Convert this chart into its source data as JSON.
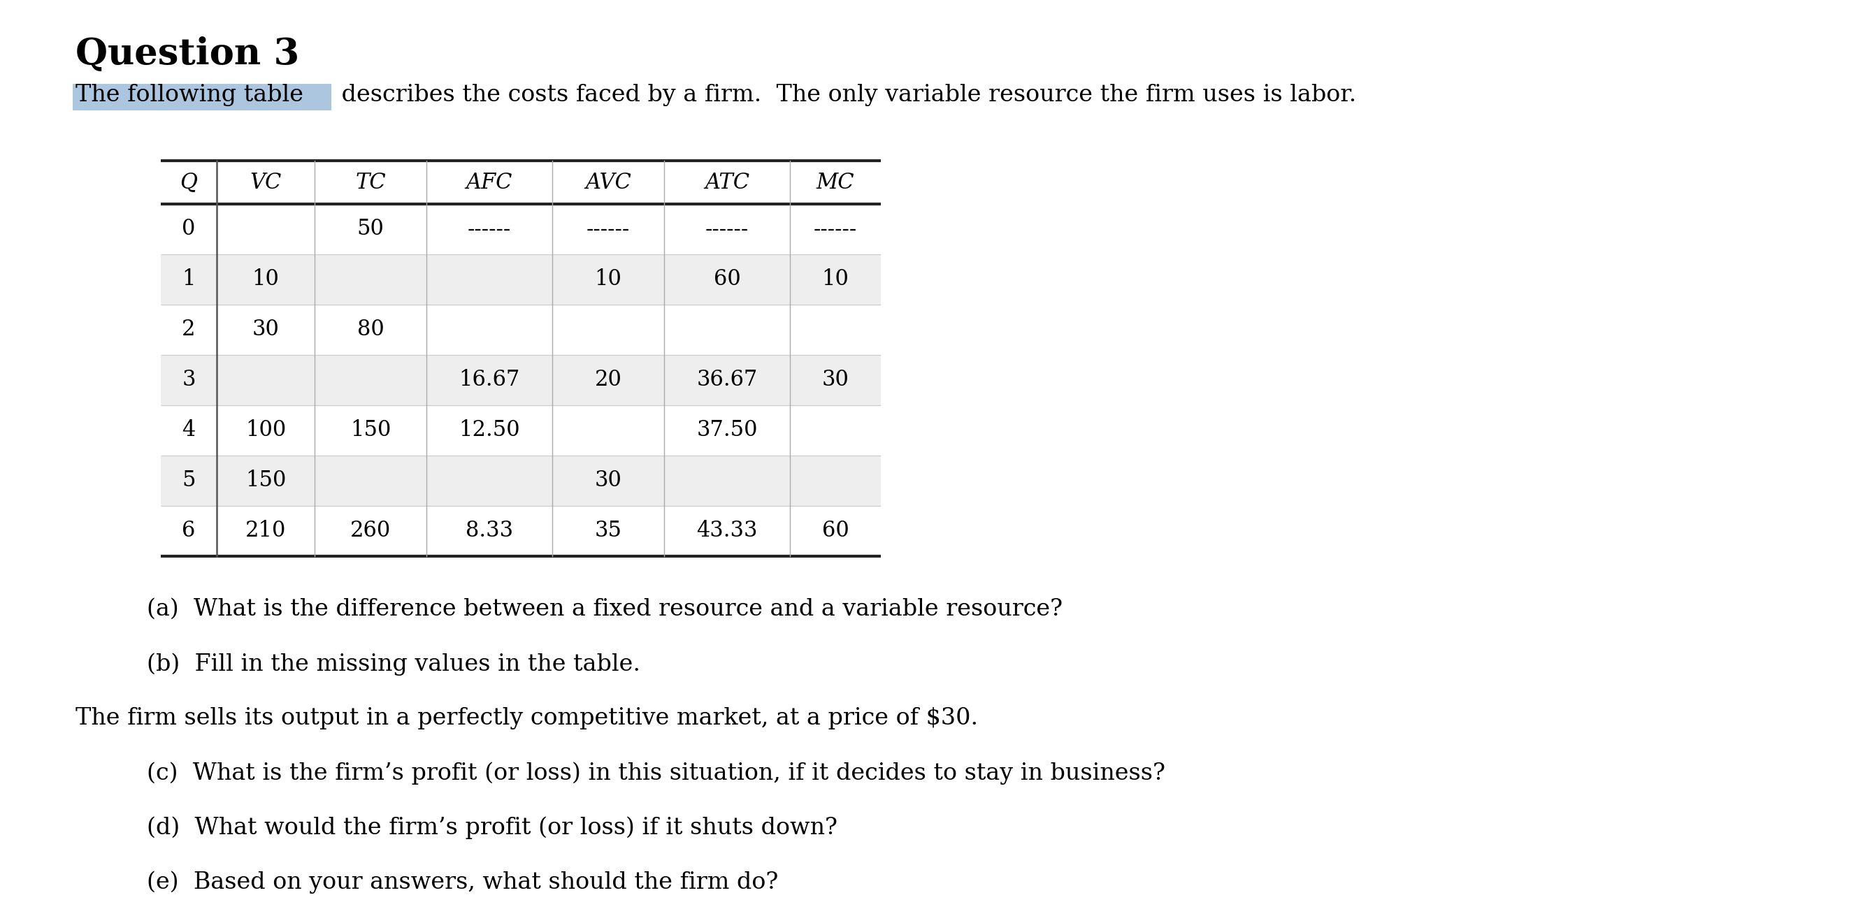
{
  "title": "Question 3",
  "intro_text_highlight": "The following table",
  "intro_text_rest": " describes the costs faced by a firm.  The only variable resource the firm uses is labor.",
  "highlight_color": "#adc6e0",
  "table_headers": [
    "Q",
    "VC",
    "TC",
    "AFC",
    "AVC",
    "ATC",
    "MC"
  ],
  "table_data": [
    [
      "0",
      "",
      "50",
      "------",
      "------",
      "------",
      "------"
    ],
    [
      "1",
      "10",
      "",
      "",
      "10",
      "60",
      "10"
    ],
    [
      "2",
      "30",
      "80",
      "",
      "",
      "",
      ""
    ],
    [
      "3",
      "",
      "",
      "16.67",
      "20",
      "36.67",
      "30"
    ],
    [
      "4",
      "100",
      "150",
      "12.50",
      "",
      "37.50",
      ""
    ],
    [
      "5",
      "150",
      "",
      "",
      "30",
      "",
      ""
    ],
    [
      "6",
      "210",
      "260",
      "8.33",
      "35",
      "43.33",
      "60"
    ]
  ],
  "row_shading": [
    false,
    true,
    false,
    true,
    false,
    true,
    false
  ],
  "shading_color": "#eeeeee",
  "questions": [
    "(a)  What is the difference between a fixed resource and a variable resource?",
    "(b)  Fill in the missing values in the table.",
    "The firm sells its output in a perfectly competitive market, at a price of $30.",
    "(c)  What is the firm’s profit (or loss) in this situation, if it decides to stay in business?",
    "(d)  What would the firm’s profit (or loss) if it shuts down?",
    "(e)  Based on your answers, what should the firm do?"
  ],
  "question_indented": [
    true,
    true,
    false,
    true,
    true,
    true
  ],
  "bg_color": "#ffffff",
  "text_color": "#000000"
}
